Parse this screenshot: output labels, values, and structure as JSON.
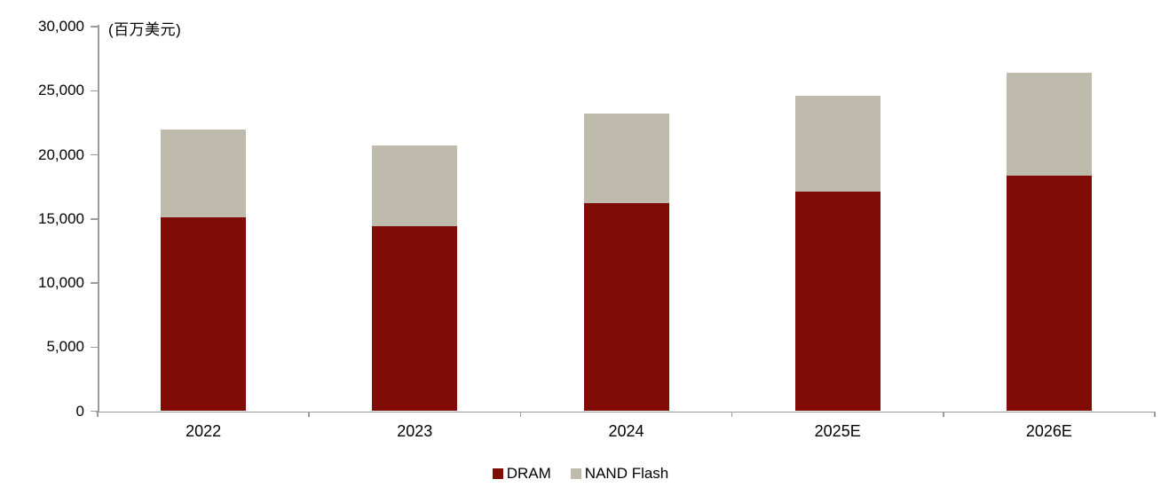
{
  "chart_data": {
    "type": "bar",
    "stacked": true,
    "unit_label": "(百万美元)",
    "categories": [
      "2022",
      "2023",
      "2024",
      "2025E",
      "2026E"
    ],
    "series": [
      {
        "name": "DRAM",
        "color": "#800C05",
        "values": [
          15100,
          14400,
          16200,
          17100,
          18400
        ]
      },
      {
        "name": "NAND Flash",
        "color": "#BEBBAC",
        "values": [
          6900,
          6300,
          7000,
          7500,
          8000
        ]
      }
    ],
    "stack_totals": [
      22000,
      20700,
      23200,
      24600,
      26400
    ],
    "ylim": [
      0,
      30000
    ],
    "ytick_step": 5000,
    "yticks": [
      "0",
      "5,000",
      "10,000",
      "15,000",
      "20,000",
      "25,000",
      "30,000"
    ],
    "xlabel": "",
    "ylabel": "",
    "title": "",
    "legend_position": "bottom",
    "grid": false,
    "axis_color": "#9c9c9c",
    "text_color": "#000000"
  }
}
